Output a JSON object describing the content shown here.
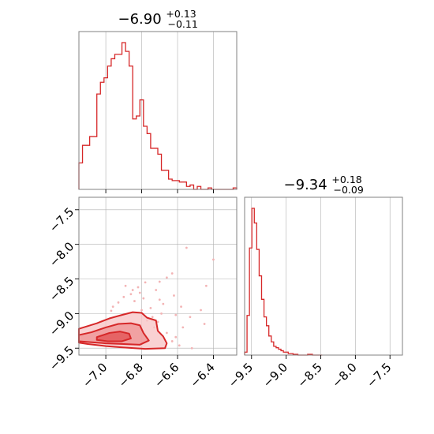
{
  "style": {
    "series_color": "#d62728",
    "fill_color": "#f4b6b7",
    "scatter_color": "#f3b4b5",
    "grid_color": "#b0b0b0",
    "frame_color": "#808080"
  },
  "chart_data": [
    {
      "type": "histogram",
      "panel": "marginal-param-1",
      "title": {
        "median": "−6.90",
        "plus": "+0.13",
        "minus": "−0.11"
      },
      "xlim": [
        -7.15,
        -6.27
      ],
      "grid": true,
      "ytick_labels": false,
      "xtick_labels": false,
      "bin_edges": [
        -7.15,
        -7.13,
        -7.11,
        -7.09,
        -7.07,
        -7.05,
        -7.03,
        -7.01,
        -6.99,
        -6.97,
        -6.95,
        -6.93,
        -6.91,
        -6.89,
        -6.87,
        -6.85,
        -6.83,
        -6.81,
        -6.79,
        -6.77,
        -6.75,
        -6.73,
        -6.71,
        -6.69,
        -6.67,
        -6.65,
        -6.63,
        -6.61,
        -6.59,
        -6.57,
        -6.55,
        -6.53,
        -6.51,
        -6.49,
        -6.47,
        -6.45,
        -6.43,
        -6.41,
        -6.39,
        -6.37,
        -6.35,
        -6.33,
        -6.31,
        -6.29,
        -6.27
      ],
      "counts": [
        0.18,
        0.3,
        0.3,
        0.36,
        0.36,
        0.65,
        0.73,
        0.76,
        0.84,
        0.89,
        0.92,
        0.92,
        1.0,
        0.94,
        0.84,
        0.48,
        0.5,
        0.61,
        0.43,
        0.38,
        0.28,
        0.28,
        0.24,
        0.13,
        0.13,
        0.07,
        0.06,
        0.06,
        0.05,
        0.05,
        0.02,
        0.03,
        0.0,
        0.02,
        0.0,
        0.0,
        0.01,
        0.0,
        0.0,
        0.0,
        0.0,
        0.0,
        0.0,
        0.01
      ]
    },
    {
      "type": "histogram",
      "panel": "marginal-param-2",
      "title": {
        "median": "−9.34",
        "plus": "+0.18",
        "minus": "−0.09"
      },
      "xlim": [
        -9.6,
        -7.32
      ],
      "xticks": [
        -9.5,
        -9.0,
        -8.5,
        -8.0,
        -7.5
      ],
      "xtick_labels": [
        "−9.5",
        "−9.0",
        "−8.5",
        "−8.0",
        "−7.5"
      ],
      "grid": true,
      "bin_edges": [
        -9.6,
        -9.565,
        -9.53,
        -9.495,
        -9.46,
        -9.425,
        -9.39,
        -9.355,
        -9.32,
        -9.285,
        -9.25,
        -9.215,
        -9.18,
        -9.145,
        -9.11,
        -9.075,
        -9.04,
        -9.005,
        -8.97,
        -8.935,
        -8.9,
        -8.865,
        -8.83,
        -8.795,
        -8.76,
        -8.725,
        -8.69,
        -8.655,
        -8.62,
        -8.585,
        -8.55,
        -8.515,
        -8.48
      ],
      "counts": [
        0.02,
        0.27,
        0.73,
        1.0,
        0.9,
        0.72,
        0.54,
        0.38,
        0.26,
        0.2,
        0.13,
        0.09,
        0.06,
        0.05,
        0.04,
        0.03,
        0.02,
        0.02,
        0.01,
        0.01,
        0.005,
        0.005,
        0.0,
        0.0,
        0.0,
        0.0,
        0.005,
        0.005,
        0.0,
        0.0,
        0.0,
        0.0
      ]
    },
    {
      "type": "scatter",
      "panel": "joint-param-1-vs-param-2",
      "xlim": [
        -7.15,
        -6.27
      ],
      "ylim": [
        -9.6,
        -7.32
      ],
      "xticks": [
        -7.0,
        -6.8,
        -6.6,
        -6.4
      ],
      "xtick_labels": [
        "−7.0",
        "−6.8",
        "−6.6",
        "−6.4"
      ],
      "yticks": [
        -7.5,
        -8.0,
        -8.5,
        -9.0,
        -9.5
      ],
      "ytick_labels": [
        "−7.5",
        "−8.0",
        "−8.5",
        "−9.0",
        "−9.5"
      ],
      "grid": true,
      "points": [
        [
          -6.89,
          -8.6
        ],
        [
          -6.82,
          -8.62
        ],
        [
          -6.78,
          -8.55
        ],
        [
          -6.86,
          -8.72
        ],
        [
          -6.79,
          -8.78
        ],
        [
          -6.84,
          -8.82
        ],
        [
          -6.72,
          -8.66
        ],
        [
          -6.7,
          -8.8
        ],
        [
          -6.68,
          -8.86
        ],
        [
          -6.75,
          -8.92
        ],
        [
          -6.62,
          -8.74
        ],
        [
          -6.58,
          -8.9
        ],
        [
          -6.57,
          -9.2
        ],
        [
          -6.52,
          -9.5
        ],
        [
          -6.55,
          -8.05
        ],
        [
          -6.4,
          -8.22
        ],
        [
          -6.44,
          -8.6
        ],
        [
          -6.63,
          -8.42
        ],
        [
          -6.66,
          -8.48
        ],
        [
          -6.9,
          -8.76
        ],
        [
          -6.93,
          -8.84
        ],
        [
          -6.96,
          -8.9
        ],
        [
          -6.74,
          -9.05
        ],
        [
          -6.71,
          -9.12
        ],
        [
          -6.66,
          -9.28
        ],
        [
          -6.61,
          -9.34
        ],
        [
          -6.59,
          -9.46
        ],
        [
          -6.63,
          -9.4
        ],
        [
          -6.8,
          -8.95
        ],
        [
          -6.77,
          -9.1
        ],
        [
          -6.73,
          -9.2
        ],
        [
          -6.69,
          -9.0
        ],
        [
          -6.97,
          -8.96
        ],
        [
          -6.85,
          -8.66
        ],
        [
          -6.81,
          -8.7
        ],
        [
          -6.47,
          -8.95
        ],
        [
          -6.53,
          -9.05
        ],
        [
          -6.45,
          -9.15
        ],
        [
          -6.61,
          -9.02
        ],
        [
          -6.7,
          -8.54
        ]
      ],
      "contours": [
        {
          "level": "outer",
          "path": [
            [
              -7.15,
              -9.22
            ],
            [
              -7.05,
              -9.14
            ],
            [
              -6.98,
              -9.07
            ],
            [
              -6.91,
              -9.02
            ],
            [
              -6.85,
              -8.98
            ],
            [
              -6.8,
              -8.99
            ],
            [
              -6.77,
              -9.06
            ],
            [
              -6.72,
              -9.1
            ],
            [
              -6.71,
              -9.25
            ],
            [
              -6.68,
              -9.33
            ],
            [
              -6.66,
              -9.43
            ],
            [
              -6.67,
              -9.5
            ],
            [
              -6.78,
              -9.51
            ],
            [
              -6.9,
              -9.49
            ],
            [
              -7.0,
              -9.47
            ],
            [
              -7.1,
              -9.44
            ],
            [
              -7.15,
              -9.42
            ]
          ]
        },
        {
          "level": "middle",
          "path": [
            [
              -7.15,
              -9.31
            ],
            [
              -7.08,
              -9.27
            ],
            [
              -7.0,
              -9.2
            ],
            [
              -6.93,
              -9.15
            ],
            [
              -6.86,
              -9.14
            ],
            [
              -6.81,
              -9.17
            ],
            [
              -6.79,
              -9.28
            ],
            [
              -6.76,
              -9.39
            ],
            [
              -6.81,
              -9.45
            ],
            [
              -6.9,
              -9.44
            ],
            [
              -7.0,
              -9.43
            ],
            [
              -7.1,
              -9.41
            ],
            [
              -7.15,
              -9.4
            ]
          ]
        },
        {
          "level": "inner",
          "path": [
            [
              -7.05,
              -9.34
            ],
            [
              -6.98,
              -9.28
            ],
            [
              -6.92,
              -9.26
            ],
            [
              -6.87,
              -9.29
            ],
            [
              -6.86,
              -9.36
            ],
            [
              -6.91,
              -9.4
            ],
            [
              -6.99,
              -9.4
            ],
            [
              -7.05,
              -9.38
            ]
          ]
        }
      ]
    }
  ]
}
